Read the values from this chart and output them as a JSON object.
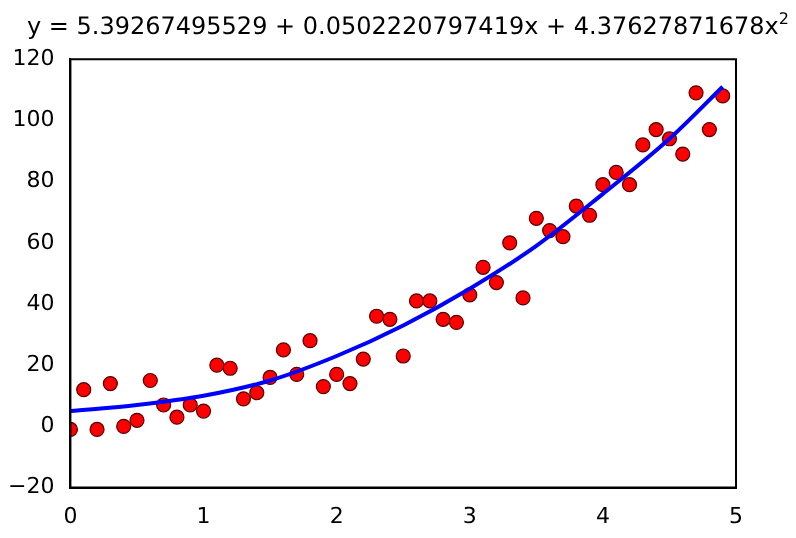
{
  "chart_data": {
    "type": "scatter",
    "title": "y = 5.39267495529 + 0.0502220797419x + 4.37627871678x$^{2}$",
    "xlim": [
      0,
      5
    ],
    "xticks": [
      0,
      1,
      2,
      3,
      4,
      5
    ],
    "ylim": [
      -20,
      120
    ],
    "yticks": [
      -20,
      0,
      20,
      40,
      60,
      80,
      100,
      120
    ],
    "grid": false,
    "legend": false,
    "series": [
      {
        "color": "#ff0000",
        "marker": "circle",
        "x": [
          0,
          0.1,
          0.2,
          0.3,
          0.4,
          0.5,
          0.6,
          0.7,
          0.8,
          0.9,
          1.0,
          1.1,
          1.2,
          1.3,
          1.4,
          1.5,
          1.6,
          1.7,
          1.8,
          1.9,
          2.0,
          2.1,
          2.2,
          2.3,
          2.4,
          2.5,
          2.6,
          2.7,
          2.8,
          2.9,
          3.0,
          3.1,
          3.2,
          3.3,
          3.4,
          3.5,
          3.6,
          3.7,
          3.8,
          3.9,
          4.0,
          4.1,
          4.2,
          4.3,
          4.4,
          4.5,
          4.6,
          4.7,
          4.8,
          4.9
        ],
        "values": [
          -1,
          12,
          -1,
          14,
          0,
          2,
          15,
          7,
          3,
          7,
          5,
          20,
          19,
          9,
          11,
          16,
          25,
          17,
          28,
          13,
          17,
          14,
          22,
          36,
          35,
          23,
          41,
          41,
          35,
          34,
          43,
          52,
          47,
          60,
          42,
          68,
          64,
          62,
          72,
          69,
          79,
          83,
          79,
          92,
          97,
          94,
          89,
          109,
          97,
          108
        ]
      },
      {
        "type": "line",
        "color": "#0000ff",
        "marker": "none",
        "line_style": "solid",
        "x": [
          0,
          0.5,
          1,
          1.5,
          2,
          2.5,
          3,
          3.5,
          4,
          4.5,
          4.9
        ],
        "values": [
          5,
          7,
          10,
          15,
          23,
          33,
          45,
          59,
          76,
          94,
          111
        ]
      }
    ]
  }
}
